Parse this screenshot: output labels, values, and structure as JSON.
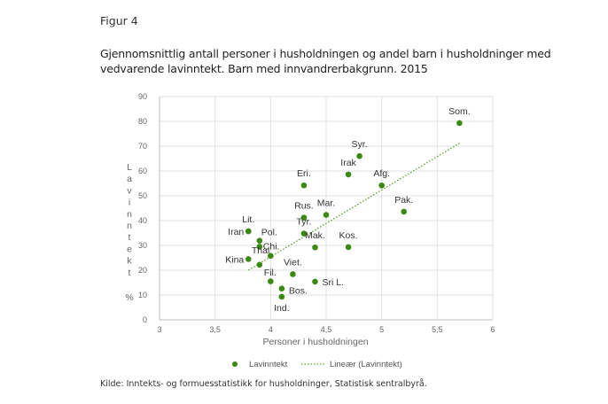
{
  "figure_label": "Figur 4",
  "figure_title": "Gjennomsnittlig antall personer i husholdningen og andel barn i husholdninger med vedvarende lavinntekt. Barn med innvandrerbakgrunn. 2015",
  "source": "Kilde: Inntekts- og formuesstatistikk for husholdninger, Statistisk sentralbyrå.",
  "chart_data": {
    "type": "scatter",
    "title": "Gjennomsnittlig antall personer i husholdningen og andel barn i husholdninger med vedvarende lavinntekt. Barn med innvandrerbakgrunn. 2015",
    "xlabel": "Personer i husholdningen",
    "ylabel": "Lavinntekt %",
    "ylabel_chars": [
      "L",
      "a",
      "v",
      "i",
      "n",
      "n",
      "t",
      "e",
      "k",
      "t"
    ],
    "ylabel_unit": "%",
    "xlim": [
      3,
      6
    ],
    "ylim": [
      0,
      90
    ],
    "x_ticks": [
      3,
      3.5,
      4,
      4.5,
      5,
      5.5,
      6
    ],
    "x_tick_labels": [
      "3",
      "3,5",
      "4",
      "4,5",
      "5",
      "5,5",
      "6"
    ],
    "y_ticks": [
      0,
      10,
      20,
      30,
      40,
      50,
      60,
      70,
      80,
      90
    ],
    "y_tick_labels": [
      "0",
      "10",
      "20",
      "30",
      "40",
      "50",
      "60",
      "70",
      "80",
      "90"
    ],
    "grid": true,
    "marker_color": "#3a8a12",
    "trend_color": "#5aa02c",
    "series": [
      {
        "name": "Lavinntekt",
        "points": [
          {
            "label": "Som.",
            "x": 5.7,
            "y": 79.3
          },
          {
            "label": "Syr.",
            "x": 4.8,
            "y": 66.0
          },
          {
            "label": "Irak",
            "x": 4.7,
            "y": 58.6
          },
          {
            "label": "Afg.",
            "x": 5.0,
            "y": 54.2
          },
          {
            "label": "Eri.",
            "x": 4.3,
            "y": 54.2
          },
          {
            "label": "Pak.",
            "x": 5.2,
            "y": 43.6
          },
          {
            "label": "Mar.",
            "x": 4.5,
            "y": 42.3
          },
          {
            "label": "Rus.",
            "x": 4.3,
            "y": 41.2
          },
          {
            "label": "Lit.",
            "x": 3.8,
            "y": 35.7
          },
          {
            "label": "Iran",
            "x": 3.8,
            "y": 35.7
          },
          {
            "label": "Tyr.",
            "x": 4.3,
            "y": 34.8
          },
          {
            "label": "Pol.",
            "x": 3.9,
            "y": 31.9
          },
          {
            "label": "Chi.",
            "x": 3.9,
            "y": 29.5
          },
          {
            "label": "Kos.",
            "x": 4.7,
            "y": 29.3
          },
          {
            "label": "Mak.",
            "x": 4.4,
            "y": 29.2
          },
          {
            "label": "Thai",
            "x": 4.0,
            "y": 25.8
          },
          {
            "label": "Kina",
            "x": 3.8,
            "y": 24.5
          },
          {
            "label": "Fil.",
            "x": 3.9,
            "y": 22.2
          },
          {
            "label": "Viet.",
            "x": 4.2,
            "y": 18.4
          },
          {
            "label": "Sri L.",
            "x": 4.4,
            "y": 15.4
          },
          {
            "label": "",
            "x": 4.0,
            "y": 15.5
          },
          {
            "label": "Bos.",
            "x": 4.1,
            "y": 12.6
          },
          {
            "label": "Ind.",
            "x": 4.1,
            "y": 9.3
          }
        ]
      },
      {
        "name": "Lineær (Lavinntekt)",
        "type": "trendline",
        "x": [
          3.8,
          5.7
        ],
        "y": [
          20.0,
          71.2
        ]
      }
    ],
    "legend": {
      "position": "bottom",
      "entries": [
        "Lavinntekt",
        "Lineær (Lavinntekt)"
      ]
    }
  }
}
